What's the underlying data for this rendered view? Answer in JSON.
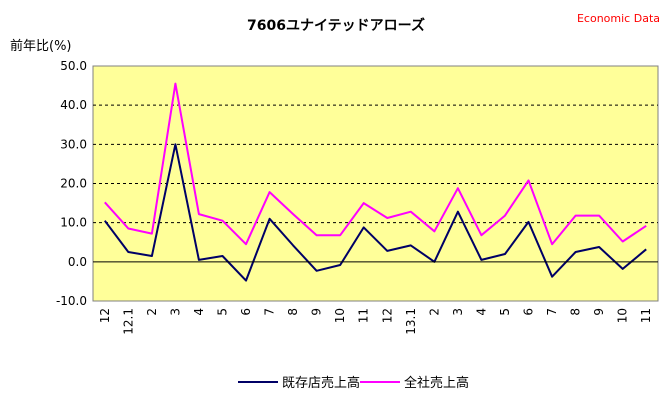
{
  "chart_data": {
    "type": "line",
    "title": "7606ユナイテッドアローズ",
    "source_label": "Economic Data",
    "ylabel": "前年比(%)",
    "ylim": [
      -10,
      50
    ],
    "yticks": [
      "50.0",
      "40.0",
      "30.0",
      "20.0",
      "10.0",
      "0.0",
      "-10.0"
    ],
    "ytick_values": [
      50,
      40,
      30,
      20,
      10,
      0,
      -10
    ],
    "categories": [
      "12",
      "12.1",
      "2",
      "3",
      "4",
      "5",
      "6",
      "7",
      "8",
      "9",
      "10",
      "11",
      "12",
      "13.1",
      "2",
      "3",
      "4",
      "5",
      "6",
      "7",
      "8",
      "9",
      "10",
      "11"
    ],
    "grid": "horizontal dashed",
    "plot_background": "#ffff99",
    "legend_position": "bottom",
    "series": [
      {
        "name": "既存店売上高",
        "color": "#000066",
        "values": [
          10.5,
          2.5,
          1.5,
          30.0,
          0.5,
          1.5,
          -4.8,
          11.0,
          4.2,
          -2.3,
          -0.8,
          8.8,
          2.8,
          4.2,
          0.0,
          12.8,
          0.5,
          2.0,
          10.2,
          -3.8,
          2.5,
          3.8,
          -1.8,
          3.2
        ]
      },
      {
        "name": "全社売上高",
        "color": "#ff00ff",
        "values": [
          15.2,
          8.5,
          7.2,
          45.5,
          12.2,
          10.5,
          4.5,
          17.8,
          12.2,
          6.8,
          6.8,
          15.0,
          11.2,
          12.8,
          7.8,
          18.8,
          6.8,
          11.8,
          20.8,
          4.5,
          11.8,
          11.8,
          5.2,
          9.2
        ]
      }
    ]
  }
}
